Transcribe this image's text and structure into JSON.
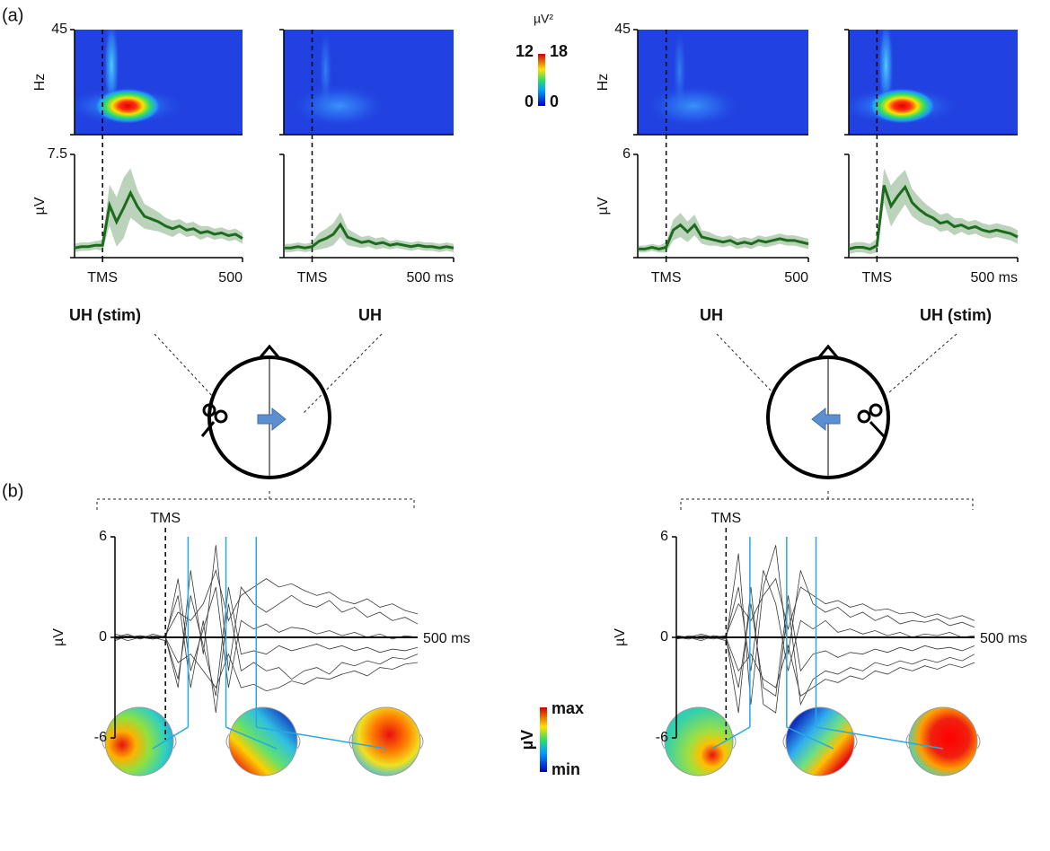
{
  "figure": {
    "panel_labels": [
      "(a)",
      "(b)"
    ],
    "tf_colorbar": {
      "unit": "µV²",
      "max_left": 12,
      "max_right": 18,
      "min_left": 0,
      "min_right": 0
    },
    "topo_colorbar": {
      "unit": "µV",
      "max": "max",
      "min": "min"
    },
    "sites": [
      {
        "labels": [
          "UH (stim)",
          "UH"
        ]
      },
      {
        "labels": [
          "UH",
          "UH (stim)"
        ]
      }
    ]
  },
  "chart_data": [
    {
      "type": "line",
      "heatmap": {
        "ylim": [
          0,
          45
        ],
        "yticks": [
          45
        ],
        "ylabel": "Hz"
      },
      "ylabel": "µV",
      "xlim": [
        -100,
        500
      ],
      "xticks": [
        {
          "value": 0,
          "label": "TMS"
        },
        {
          "value": 500,
          "label": "500"
        }
      ],
      "ylim": [
        0,
        7.5
      ],
      "yticks": [
        7.5
      ],
      "x": [
        -100,
        -75,
        -50,
        -25,
        0,
        25,
        50,
        75,
        100,
        125,
        150,
        175,
        200,
        225,
        250,
        275,
        300,
        325,
        350,
        375,
        400,
        425,
        450,
        475,
        500
      ],
      "series": [
        {
          "color": "#1d6b1d",
          "values": [
            0.7,
            0.8,
            0.8,
            0.9,
            0.9,
            3.8,
            2.6,
            3.6,
            4.7,
            3.7,
            3.0,
            2.8,
            2.6,
            2.3,
            2.1,
            2.3,
            2.0,
            2.1,
            1.8,
            1.9,
            1.7,
            1.8,
            1.6,
            1.7,
            1.4
          ],
          "error": [
            0.3,
            0.3,
            0.3,
            0.3,
            0.4,
            1.5,
            1.8,
            2.2,
            1.8,
            1.2,
            0.9,
            0.8,
            0.7,
            0.6,
            0.6,
            0.5,
            0.5,
            0.5,
            0.5,
            0.4,
            0.4,
            0.4,
            0.4,
            0.4,
            0.4
          ]
        }
      ]
    },
    {
      "type": "line",
      "heatmap": {
        "ylim": [
          0,
          45
        ]
      },
      "xlim": [
        -100,
        500
      ],
      "xticks": [
        {
          "value": 0,
          "label": "TMS"
        },
        {
          "value": 500,
          "label": "500 ms"
        }
      ],
      "ylim": [
        0,
        7.5
      ],
      "x": [
        -100,
        -75,
        -50,
        -25,
        0,
        25,
        50,
        75,
        100,
        125,
        150,
        175,
        200,
        225,
        250,
        275,
        300,
        325,
        350,
        375,
        400,
        425,
        450,
        475,
        500
      ],
      "series": [
        {
          "color": "#1d6b1d",
          "values": [
            0.7,
            0.7,
            0.8,
            0.7,
            0.8,
            1.2,
            1.4,
            1.7,
            2.4,
            1.5,
            1.3,
            1.1,
            1.2,
            1.0,
            1.1,
            0.9,
            1.0,
            0.9,
            0.8,
            0.9,
            0.8,
            0.8,
            0.7,
            0.8,
            0.7
          ],
          "error": [
            0.3,
            0.3,
            0.3,
            0.3,
            0.3,
            0.6,
            0.7,
            0.8,
            0.9,
            0.6,
            0.5,
            0.4,
            0.4,
            0.4,
            0.4,
            0.3,
            0.3,
            0.3,
            0.3,
            0.3,
            0.3,
            0.3,
            0.3,
            0.3,
            0.3
          ]
        }
      ]
    },
    {
      "type": "line",
      "heatmap": {
        "ylim": [
          0,
          45
        ],
        "yticks": [
          45
        ],
        "ylabel": "Hz"
      },
      "ylabel": "µV",
      "xlim": [
        -100,
        500
      ],
      "xticks": [
        {
          "value": 0,
          "label": "TMS"
        },
        {
          "value": 500,
          "label": "500"
        }
      ],
      "ylim": [
        0,
        6
      ],
      "yticks": [
        6
      ],
      "x": [
        -100,
        -75,
        -50,
        -25,
        0,
        25,
        50,
        75,
        100,
        125,
        150,
        175,
        200,
        225,
        250,
        275,
        300,
        325,
        350,
        375,
        400,
        425,
        450,
        475,
        500
      ],
      "series": [
        {
          "color": "#1d6b1d",
          "values": [
            0.5,
            0.5,
            0.6,
            0.5,
            0.6,
            1.6,
            1.9,
            1.5,
            1.9,
            1.2,
            1.1,
            1.0,
            0.9,
            1.0,
            0.8,
            0.9,
            0.8,
            1.0,
            0.9,
            1.0,
            1.1,
            1.0,
            1.0,
            0.9,
            0.8
          ],
          "error": [
            0.2,
            0.2,
            0.2,
            0.2,
            0.3,
            0.6,
            0.7,
            0.6,
            0.6,
            0.4,
            0.4,
            0.3,
            0.3,
            0.3,
            0.3,
            0.3,
            0.3,
            0.3,
            0.3,
            0.3,
            0.3,
            0.3,
            0.3,
            0.3,
            0.3
          ]
        }
      ]
    },
    {
      "type": "line",
      "heatmap": {
        "ylim": [
          0,
          45
        ]
      },
      "xlim": [
        -100,
        500
      ],
      "xticks": [
        {
          "value": 0,
          "label": "TMS"
        },
        {
          "value": 500,
          "label": "500 ms"
        }
      ],
      "ylim": [
        0,
        6
      ],
      "x": [
        -100,
        -75,
        -50,
        -25,
        0,
        25,
        50,
        75,
        100,
        125,
        150,
        175,
        200,
        225,
        250,
        275,
        300,
        325,
        350,
        375,
        400,
        425,
        450,
        475,
        500
      ],
      "series": [
        {
          "color": "#1d6b1d",
          "values": [
            0.5,
            0.6,
            0.6,
            0.5,
            0.7,
            4.2,
            3.0,
            3.6,
            4.1,
            3.2,
            2.8,
            2.5,
            2.3,
            2.0,
            2.1,
            1.8,
            1.9,
            1.7,
            1.8,
            1.6,
            1.5,
            1.6,
            1.5,
            1.4,
            1.2
          ],
          "error": [
            0.3,
            0.3,
            0.3,
            0.3,
            0.4,
            1.0,
            1.2,
            1.1,
            1.0,
            0.8,
            0.7,
            0.6,
            0.5,
            0.5,
            0.5,
            0.5,
            0.4,
            0.4,
            0.4,
            0.4,
            0.4,
            0.4,
            0.4,
            0.4,
            0.4
          ]
        }
      ]
    },
    {
      "type": "butterfly",
      "annotation": "TMS",
      "ylabel": "µV",
      "xlim": [
        -100,
        500
      ],
      "xticks": [
        {
          "value": 500,
          "label": "500 ms"
        }
      ],
      "ylim": [
        -6,
        6
      ],
      "yticks": [
        6,
        0,
        -6
      ],
      "markers": [
        45,
        120,
        180
      ],
      "marker_color": "#29a8e0",
      "x": [
        -100,
        -75,
        -50,
        -25,
        0,
        25,
        50,
        75,
        100,
        125,
        150,
        175,
        200,
        225,
        250,
        275,
        300,
        325,
        350,
        375,
        400,
        425,
        450,
        475,
        500
      ],
      "series": [
        {
          "color": "#3a3a3a",
          "values": [
            0,
            0.2,
            -0.1,
            0.1,
            0,
            -3,
            4,
            -1,
            5.5,
            -2,
            3,
            2,
            1.5,
            2,
            2.5,
            2,
            1.8,
            2.2,
            1.5,
            1.8,
            1.2,
            1.5,
            1,
            1.2,
            0.8
          ]
        },
        {
          "color": "#3a3a3a",
          "values": [
            0.1,
            -0.2,
            0,
            -0.1,
            0.1,
            2.5,
            -3,
            1,
            -4.5,
            2,
            -2,
            -1.5,
            -2,
            -1.8,
            -2.5,
            -2,
            -1.8,
            -2.2,
            -1.5,
            -1.7,
            -1.4,
            -1.6,
            -1.2,
            -1.3,
            -1
          ]
        },
        {
          "color": "#3a3a3a",
          "values": [
            -0.1,
            0,
            0.1,
            0,
            -0.2,
            3.5,
            -2,
            0.5,
            3,
            -3,
            1,
            0.5,
            0.8,
            0.3,
            0.6,
            0.5,
            0.2,
            0.4,
            0.1,
            0.3,
            0,
            0.2,
            -0.1,
            0.1,
            0
          ]
        },
        {
          "color": "#3a3a3a",
          "values": [
            0,
            0.1,
            -0.1,
            0.2,
            0,
            -2.5,
            2.5,
            -0.5,
            -3.5,
            3,
            -1,
            -0.8,
            -1,
            -0.5,
            -0.8,
            -0.6,
            -0.4,
            -0.7,
            -0.5,
            -0.8,
            -0.6,
            -0.9,
            -0.7,
            -0.8,
            -0.6
          ]
        },
        {
          "color": "#3a3a3a",
          "values": [
            0.2,
            0,
            0.1,
            -0.1,
            0.1,
            1.5,
            1,
            2,
            4,
            1,
            2.5,
            3,
            3.5,
            3,
            3.2,
            2.8,
            2.5,
            2.7,
            2.2,
            2,
            2.3,
            1.8,
            2,
            1.6,
            1.4
          ]
        },
        {
          "color": "#3a3a3a",
          "values": [
            -0.2,
            0.1,
            0,
            -0.1,
            0,
            -1.5,
            -1,
            -2,
            -3,
            -1,
            -3,
            -2.8,
            -3.2,
            -3,
            -2.6,
            -2.8,
            -2.4,
            -2.5,
            -2.2,
            -2,
            -2.3,
            -1.8,
            -1.9,
            -1.6,
            -1.5
          ]
        }
      ]
    },
    {
      "type": "butterfly",
      "annotation": "TMS",
      "ylabel": "µV",
      "xlim": [
        -100,
        500
      ],
      "xticks": [
        {
          "value": 500,
          "label": "500 ms"
        }
      ],
      "ylim": [
        -6,
        6
      ],
      "yticks": [
        6,
        0,
        -6
      ],
      "markers": [
        48,
        122,
        181
      ],
      "marker_color": "#29a8e0",
      "x": [
        -100,
        -75,
        -50,
        -25,
        0,
        25,
        50,
        75,
        100,
        125,
        150,
        175,
        200,
        225,
        250,
        275,
        300,
        325,
        350,
        375,
        400,
        425,
        450,
        475,
        500
      ],
      "series": [
        {
          "color": "#3a3a3a",
          "values": [
            0,
            -0.1,
            0.1,
            0,
            -0.2,
            5,
            -4,
            3,
            5.5,
            -1,
            4,
            2,
            1.5,
            1.8,
            1.2,
            1.5,
            1,
            1.3,
            0.8,
            1,
            0.9,
            1.1,
            0.7,
            0.9,
            0.6
          ]
        },
        {
          "color": "#3a3a3a",
          "values": [
            0.1,
            0,
            -0.1,
            0.1,
            0,
            -4.5,
            3,
            -4,
            -4.5,
            2,
            -4,
            -2.5,
            -2,
            -2.2,
            -1.8,
            -2,
            -1.5,
            -1.7,
            -1.4,
            -1.6,
            -1.3,
            -1.5,
            -1.2,
            -1.4,
            -1
          ]
        },
        {
          "color": "#3a3a3a",
          "values": [
            -0.1,
            0.1,
            0,
            -0.1,
            0.1,
            3,
            -2,
            4,
            2,
            -2,
            1,
            0.5,
            1,
            0.3,
            0.5,
            0.2,
            0.4,
            0.1,
            0.3,
            0,
            0.2,
            0.1,
            0.3,
            0,
            0.1
          ]
        },
        {
          "color": "#3a3a3a",
          "values": [
            0,
            -0.1,
            0.1,
            0,
            -0.1,
            -3,
            2,
            -3,
            -3.5,
            2.5,
            -2,
            -1,
            -0.8,
            -1.2,
            -0.9,
            -1,
            -0.7,
            -0.9,
            -0.6,
            -0.8,
            -0.5,
            -0.7,
            -0.6,
            -0.8,
            -0.5
          ]
        },
        {
          "color": "#3a3a3a",
          "values": [
            0.1,
            0,
            0.2,
            0,
            0.1,
            2,
            1,
            2.5,
            3.5,
            0.5,
            3,
            2.5,
            2,
            2.2,
            1.8,
            2,
            1.6,
            1.7,
            1.4,
            1.5,
            1.2,
            1.4,
            1.1,
            1.3,
            1
          ]
        },
        {
          "color": "#3a3a3a",
          "values": [
            -0.1,
            0,
            -0.2,
            0.1,
            0,
            -2,
            -1,
            -2.5,
            -3,
            -0.5,
            -3.5,
            -3,
            -2.5,
            -2.7,
            -2.3,
            -2.5,
            -2,
            -2.2,
            -1.8,
            -2,
            -1.7,
            -1.9,
            -1.6,
            -1.8,
            -1.5
          ]
        }
      ]
    }
  ]
}
